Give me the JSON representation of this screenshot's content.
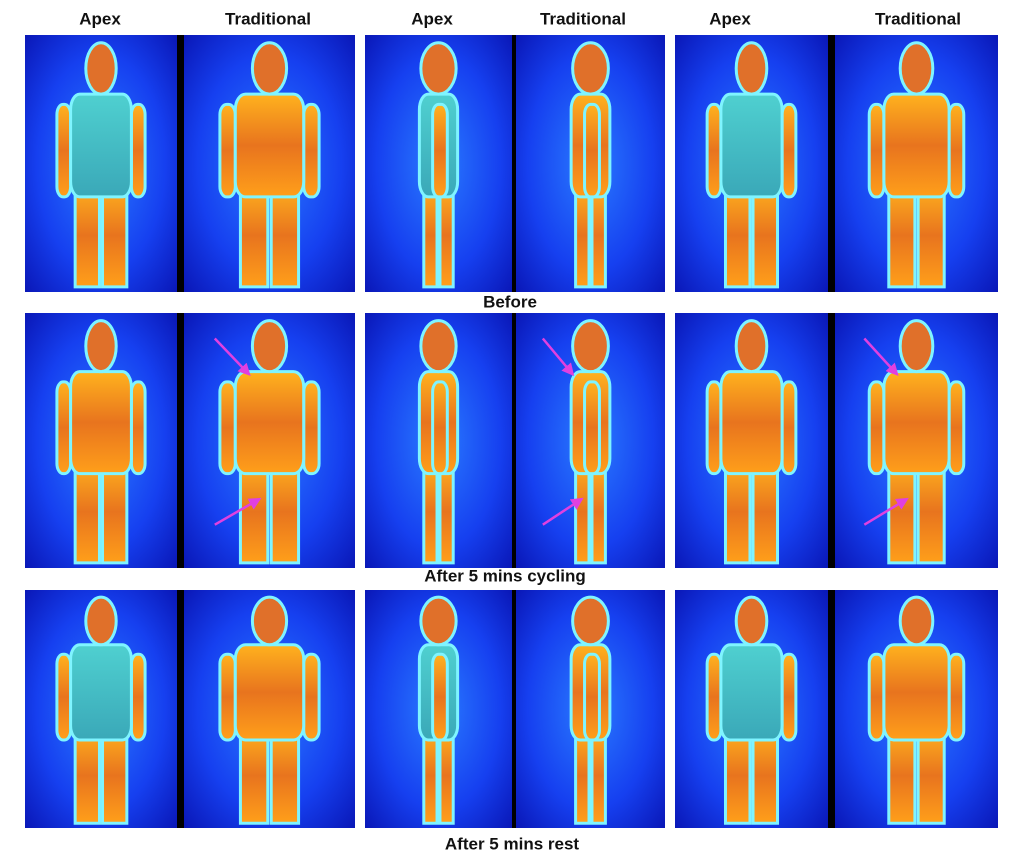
{
  "column_headers": [
    "Apex",
    "Traditional",
    "Apex",
    "Traditional",
    "Apex",
    "Traditional"
  ],
  "row_labels": [
    "Before",
    "After 5 mins cycling",
    "After 5 mins rest"
  ]
}
